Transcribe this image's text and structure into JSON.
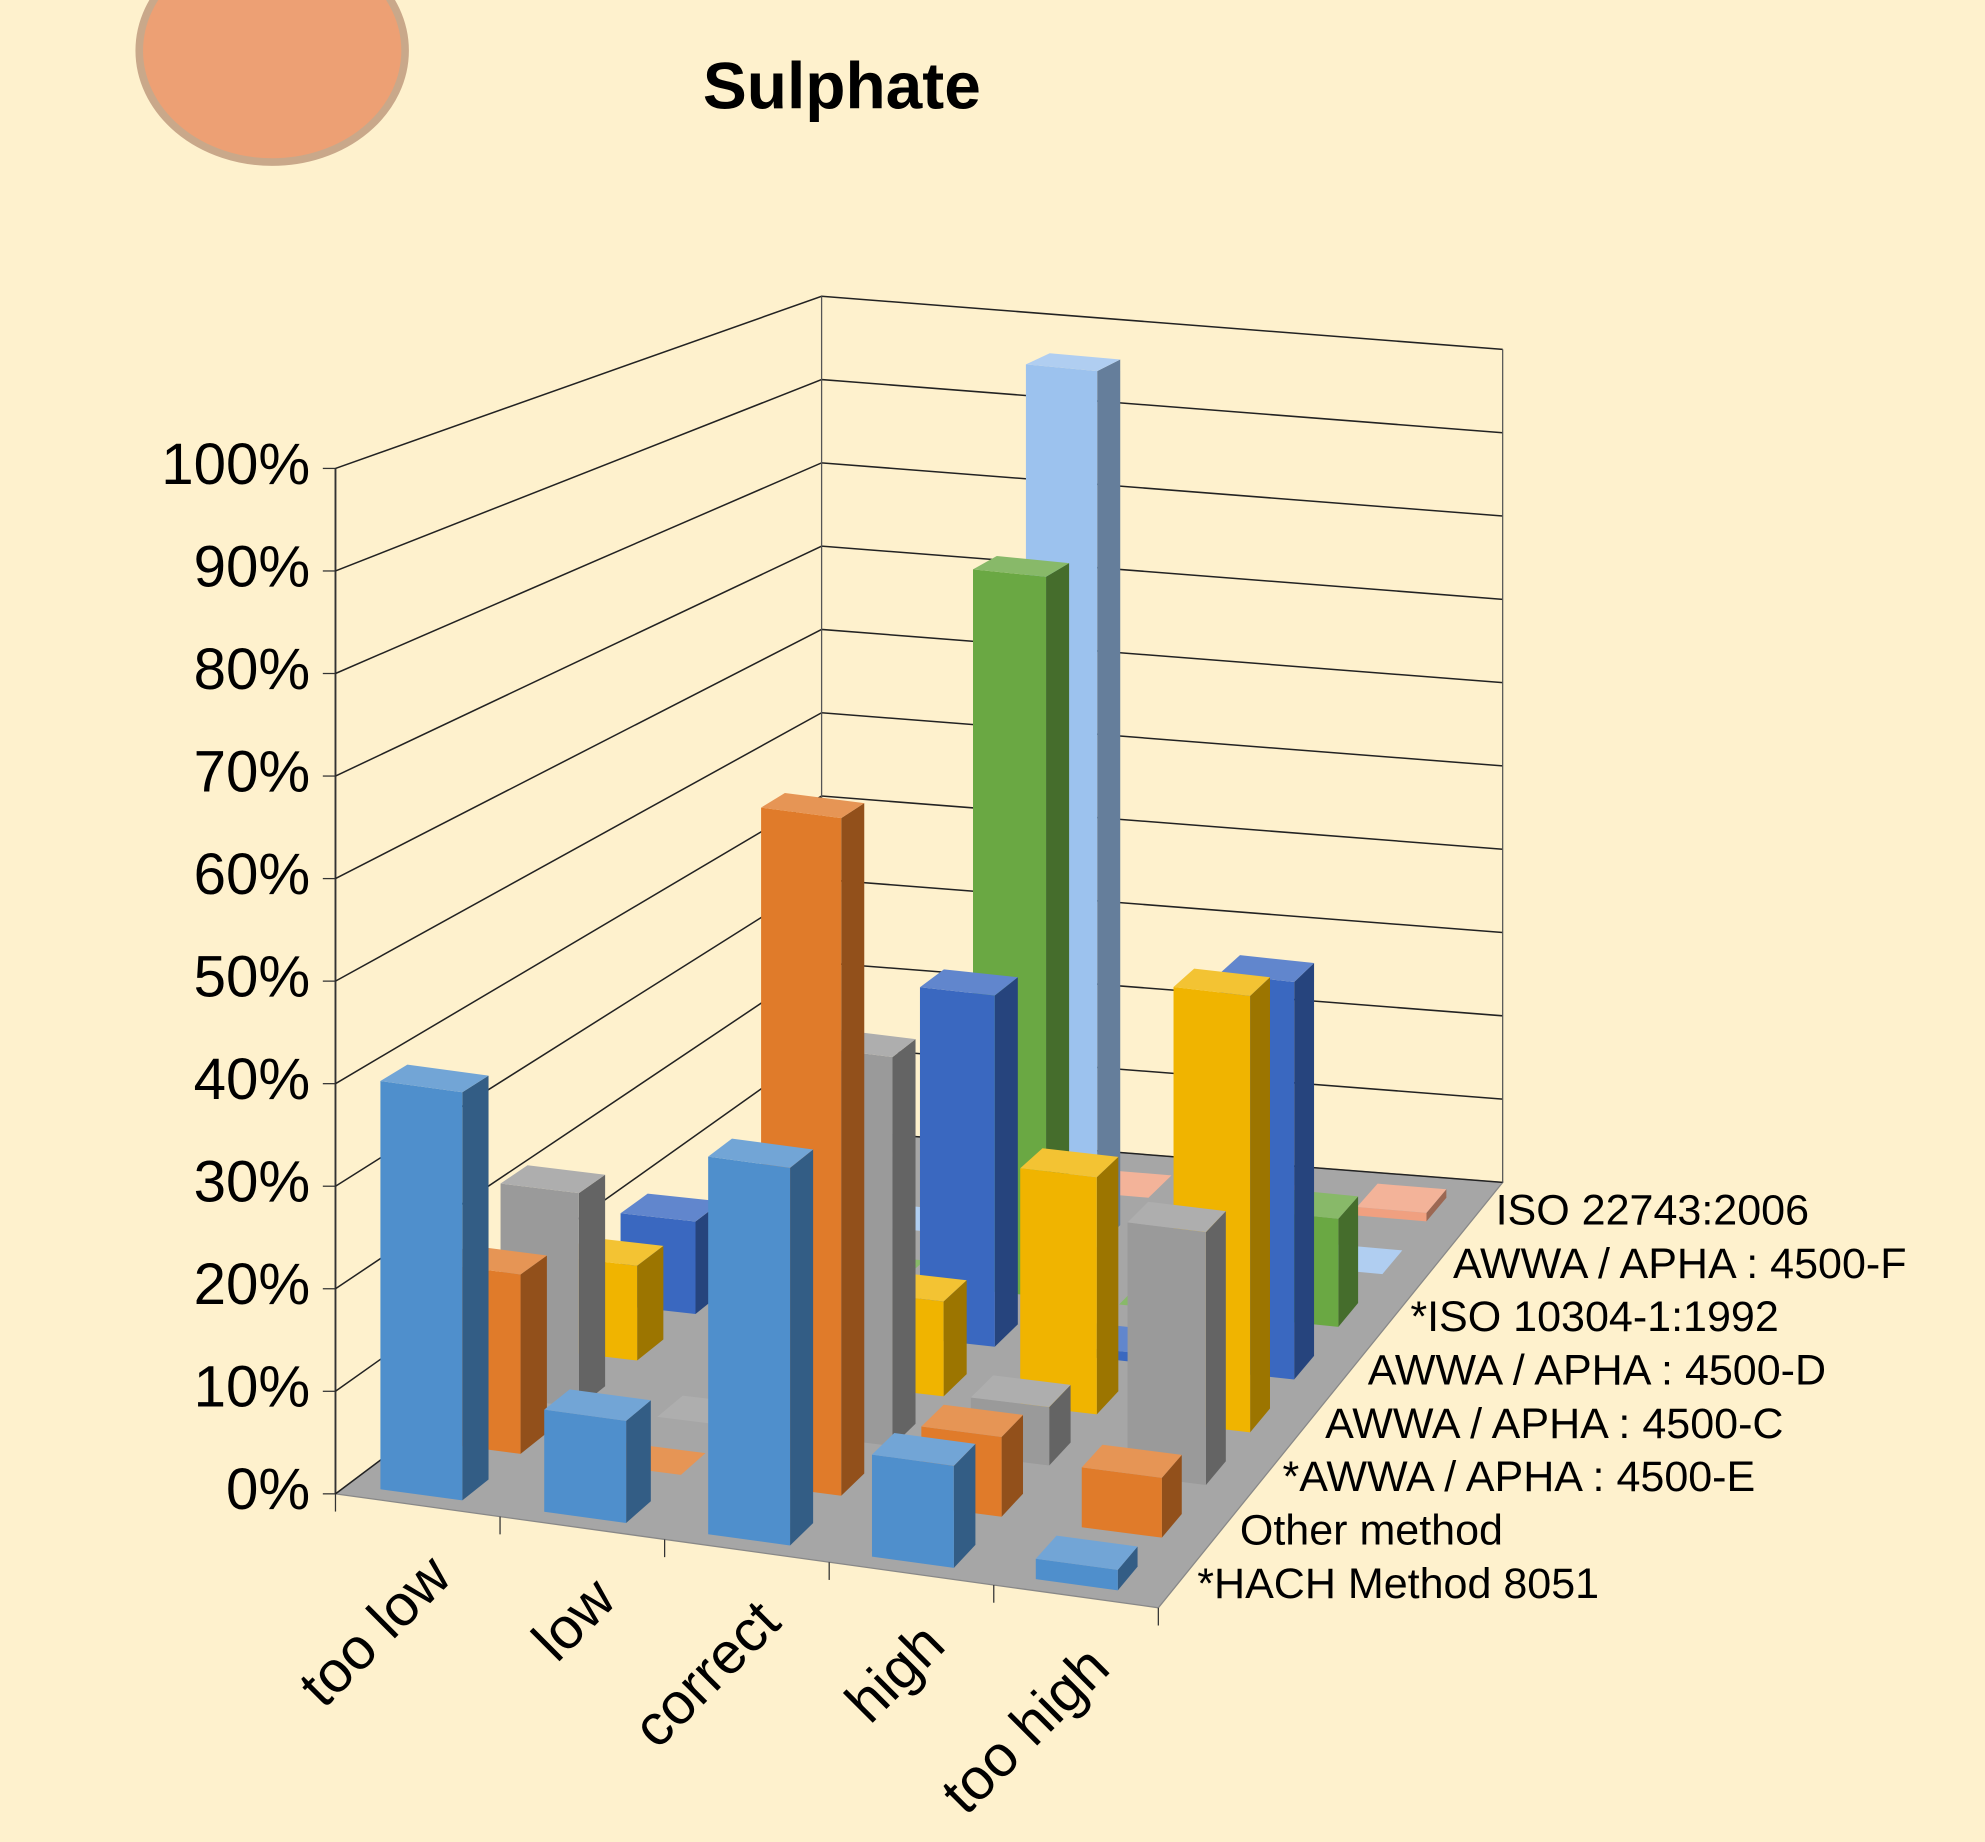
{
  "chart_data": {
    "type": "bar3d",
    "title": "Sulphate",
    "categories": [
      "too low",
      "low",
      "correct",
      "high",
      "too high"
    ],
    "series": [
      {
        "name": "*HACH Method 8051",
        "color": "#4f8fcc",
        "values": [
          40,
          10,
          37,
          10,
          2
        ]
      },
      {
        "name": "Other method",
        "color": "#e07b2a",
        "values": [
          18,
          0,
          68,
          8,
          6
        ]
      },
      {
        "name": "*AWWA / APHA : 4500-E",
        "color": "#9a9a9a",
        "values": [
          22,
          0,
          40,
          6,
          26
        ]
      },
      {
        "name": "AWWA / APHA : 4500-C",
        "color": "#f0b400",
        "values": [
          10,
          8,
          10,
          25,
          46
        ]
      },
      {
        "name": "AWWA / APHA : 4500-D",
        "color": "#3a68c0",
        "values": [
          10,
          0,
          38,
          1,
          43
        ]
      },
      {
        "name": "*ISO 10304-1:1992",
        "color": "#6aa843",
        "values": [
          0,
          0,
          80,
          0,
          12
        ]
      },
      {
        "name": "AWWA / APHA : 4500-F",
        "color": "#9cc2ee",
        "values": [
          0,
          0,
          100,
          0,
          0
        ]
      },
      {
        "name": "ISO 22743:2006",
        "color": "#f0a080",
        "values": [
          0,
          0,
          0,
          0,
          1
        ]
      }
    ],
    "ylim": [
      0,
      100
    ],
    "yticks": [
      {
        "value": 0,
        "label": "0%"
      },
      {
        "value": 10,
        "label": "10%"
      },
      {
        "value": 20,
        "label": "20%"
      },
      {
        "value": 30,
        "label": "30%"
      },
      {
        "value": 40,
        "label": "40%"
      },
      {
        "value": 50,
        "label": "50%"
      },
      {
        "value": 60,
        "label": "60%"
      },
      {
        "value": 70,
        "label": "70%"
      },
      {
        "value": 80,
        "label": "80%"
      },
      {
        "value": 90,
        "label": "90%"
      },
      {
        "value": 100,
        "label": "100%"
      }
    ],
    "grid": true
  }
}
